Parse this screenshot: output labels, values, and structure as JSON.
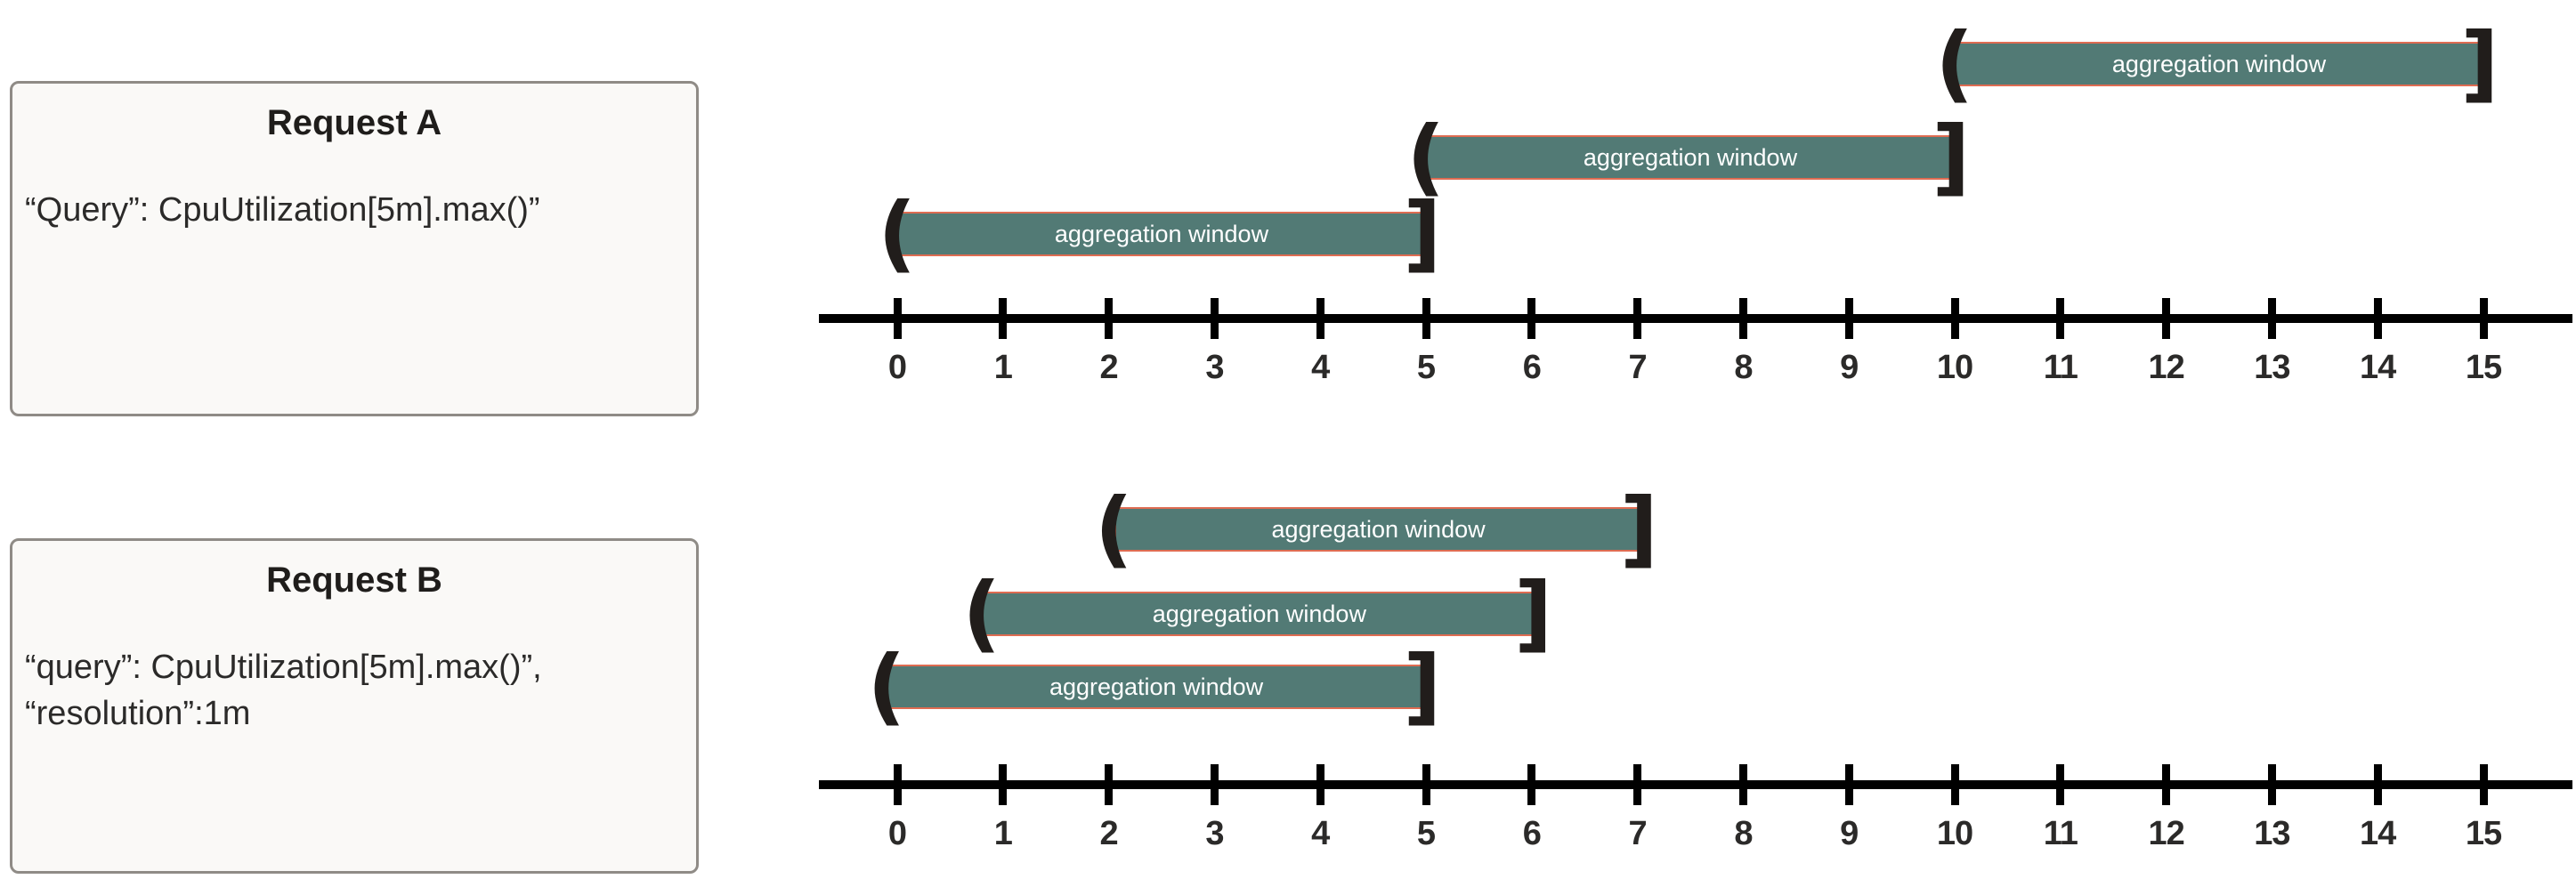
{
  "request_a": {
    "title": "Request A",
    "body_lines": [
      "“Query”: CpuUtilization[5m].max()”"
    ]
  },
  "request_b": {
    "title": "Request B",
    "body_lines": [
      "“query”: CpuUtilization[5m].max()”,",
      "“resolution”:1m"
    ]
  },
  "colors": {
    "bar_fill": "#527a75",
    "bar_border": "#df6c52",
    "bar_text": "#ffffff",
    "bracket": "#211d1b",
    "axis": "#000000",
    "tick_label": "#2b2a29",
    "box_border": "#8f8b86",
    "box_fill": "#faf9f7"
  },
  "timelines": [
    {
      "id": "timeline-a",
      "name": "request-a-timeline",
      "ticks": [
        0,
        1,
        2,
        3,
        4,
        5,
        6,
        7,
        8,
        9,
        10,
        11,
        12,
        13,
        14,
        15
      ],
      "windows": [
        {
          "label": "aggregation window",
          "start": 0,
          "end": 5,
          "row": 0,
          "left_delim": "(",
          "right_delim": "]"
        },
        {
          "label": "aggregation window",
          "start": 5,
          "end": 10,
          "row": 1,
          "left_delim": "(",
          "right_delim": "]"
        },
        {
          "label": "aggregation window",
          "start": 10,
          "end": 15,
          "row": 2,
          "left_delim": "(",
          "right_delim": "]"
        }
      ]
    },
    {
      "id": "timeline-b",
      "name": "request-b-timeline",
      "ticks": [
        0,
        1,
        2,
        3,
        4,
        5,
        6,
        7,
        8,
        9,
        10,
        11,
        12,
        13,
        14,
        15
      ],
      "windows": [
        {
          "label": "aggregation window",
          "start": -0.1,
          "end": 5,
          "row": 0,
          "left_delim": "(",
          "right_delim": "]"
        },
        {
          "label": "aggregation window",
          "start": 0.8,
          "end": 6.05,
          "row": 1,
          "left_delim": "(",
          "right_delim": "]"
        },
        {
          "label": "aggregation window",
          "start": 2.05,
          "end": 7.05,
          "row": 2,
          "left_delim": "(",
          "right_delim": "]"
        }
      ]
    }
  ]
}
